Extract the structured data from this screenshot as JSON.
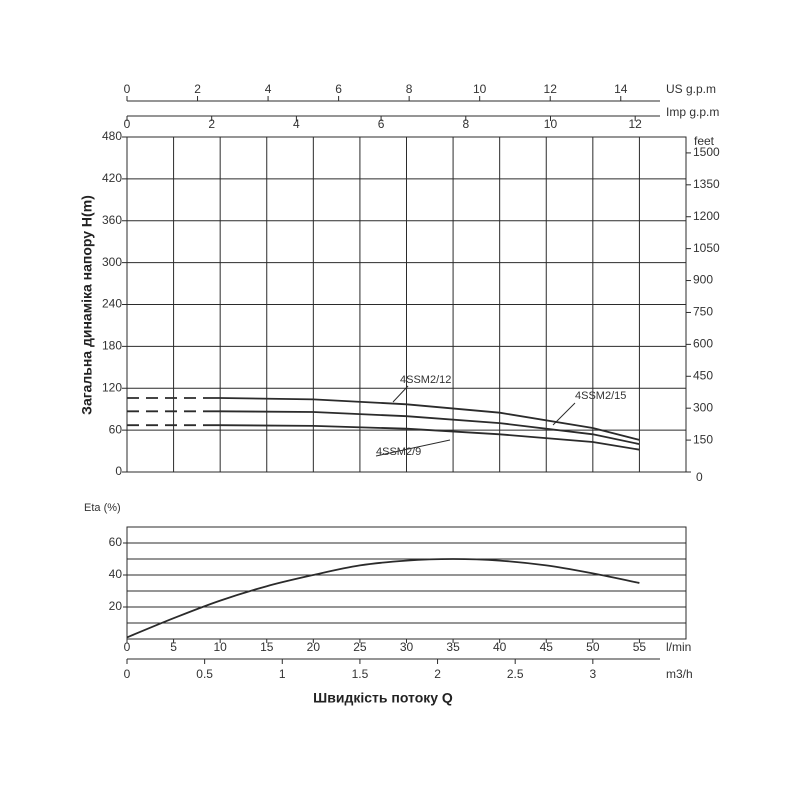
{
  "chart_data": [
    {
      "type": "line",
      "y_label": "Загальна динаміка напору H(m)",
      "x": [
        0,
        10,
        20,
        30,
        40,
        50,
        55
      ],
      "dashed_below_x": 10,
      "series": [
        {
          "name": "4SSM2/15",
          "color": "#2b2b2b",
          "values": [
            106,
            106,
            104,
            97,
            85,
            63,
            46
          ]
        },
        {
          "name": "4SSM2/12",
          "color": "#2b2b2b",
          "values": [
            87,
            87,
            86,
            80,
            70,
            54,
            40
          ]
        },
        {
          "name": "4SSM2/9",
          "color": "#2b2b2b",
          "values": [
            67,
            67,
            66,
            62,
            54,
            43,
            32
          ]
        }
      ],
      "xlim": [
        0,
        60
      ],
      "xgrid": [
        5,
        10,
        15,
        20,
        25,
        30,
        35,
        40,
        45,
        50,
        55
      ],
      "ylim": [
        0,
        480
      ],
      "yticks": [
        0,
        60,
        120,
        180,
        240,
        300,
        360,
        420,
        480
      ],
      "y2_label": "feet",
      "y2lim": [
        0,
        1574.8
      ],
      "y2ticks": [
        0,
        150,
        300,
        450,
        600,
        750,
        900,
        1050,
        1200,
        1350,
        1500
      ],
      "top_axes": [
        {
          "label": "US g.p.m",
          "xlim": [
            0,
            15.85
          ],
          "xticks": [
            0,
            2,
            4,
            6,
            8,
            10,
            12,
            14
          ]
        },
        {
          "label": "Imp g.p.m",
          "xlim": [
            0,
            13.2
          ],
          "xticks": [
            0,
            2,
            4,
            6,
            8,
            10,
            12
          ]
        }
      ],
      "grid": true
    },
    {
      "type": "line",
      "y_label": "Eta (%)",
      "x_label": "Швидкість потоку Q",
      "x_unit": "l/min",
      "x": [
        0,
        5,
        10,
        15,
        20,
        25,
        30,
        35,
        40,
        45,
        50,
        55
      ],
      "series": [
        {
          "color": "#2b2b2b",
          "values": [
            1,
            13,
            24,
            33,
            40,
            46,
            49,
            50,
            49,
            46,
            41,
            35
          ]
        }
      ],
      "xlim": [
        0,
        60
      ],
      "xticks": [
        0,
        5,
        10,
        15,
        20,
        25,
        30,
        35,
        40,
        45,
        50,
        55
      ],
      "ylim": [
        0,
        70
      ],
      "yticks": [
        20,
        40,
        60
      ],
      "minor_yticks": [
        10,
        30,
        50,
        70
      ],
      "x2": {
        "label": "m3/h",
        "xlim": [
          0,
          3.6
        ],
        "xticks": [
          0,
          0.5,
          1,
          1.5,
          2,
          2.5,
          3
        ]
      },
      "grid": true
    }
  ]
}
